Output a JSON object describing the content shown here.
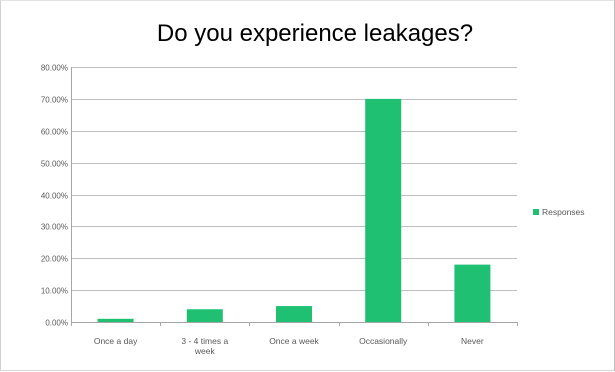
{
  "chart_data": {
    "type": "bar",
    "title": "Do you experience leakages?",
    "xlabel": "",
    "ylabel": "",
    "categories": [
      "Once a day",
      "3 - 4 times a week",
      "Once a week",
      "Occasionally",
      "Never"
    ],
    "series": [
      {
        "name": "Responses",
        "values": [
          0.01,
          0.04,
          0.05,
          0.7,
          0.18
        ],
        "color": "#1fc072"
      }
    ],
    "ylim": [
      0,
      0.8
    ],
    "yticks": [
      0,
      0.1,
      0.2,
      0.3,
      0.4,
      0.5,
      0.6,
      0.7,
      0.8
    ],
    "ytick_labels": [
      "0.00%",
      "10.00%",
      "20.00%",
      "30.00%",
      "40.00%",
      "50.00%",
      "60.00%",
      "70.00%",
      "80.00%"
    ],
    "grid": true,
    "legend": "right"
  },
  "colors": {
    "gridline": "#bfbfbf",
    "axis": "#a6a6a6"
  }
}
